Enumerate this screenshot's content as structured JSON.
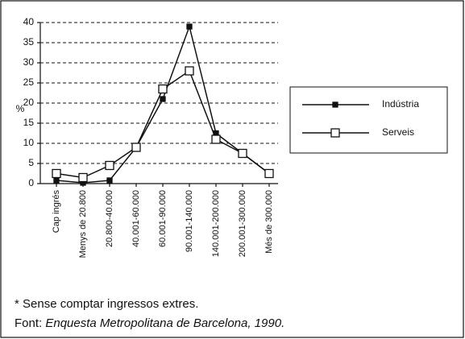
{
  "chart_data": {
    "type": "line",
    "y_label": "%",
    "categories": [
      "Cap ingrés",
      "Menys de 20.800",
      "20.800-40.000",
      "40.001-60.000",
      "60.001-90.000",
      "90.001-140.000",
      "140.001-200.000",
      "200.001-300.000",
      "Més de 300.000"
    ],
    "series": [
      {
        "name": "Indústria",
        "color": "#111111",
        "values": [
          0.8,
          0.2,
          0.8,
          9,
          21,
          39,
          12.5,
          7.5,
          2.5
        ]
      },
      {
        "name": "Serveis",
        "color": "#111111",
        "values": [
          2.5,
          1.5,
          4.5,
          9,
          23.5,
          28,
          11,
          7.5,
          2.5
        ]
      }
    ],
    "ylim": [
      0,
      40
    ],
    "yticks": [
      0,
      5,
      10,
      15,
      20,
      25,
      30,
      35,
      40
    ],
    "grid": true,
    "legend": "right",
    "footnote": "* Sense comptar ingressos extres.",
    "source_label": "Font:",
    "source": "Enquesta Metropolitana de Barcelona, 1990."
  }
}
